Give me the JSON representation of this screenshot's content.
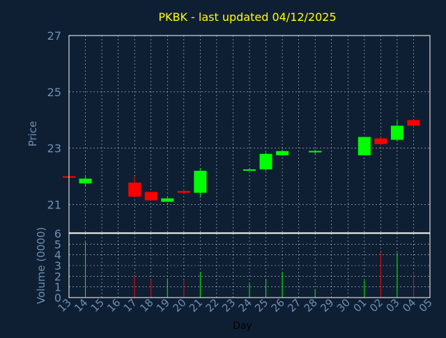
{
  "title": "PKBK - last updated 04/12/2025",
  "colors": {
    "background": "#0f1f33",
    "axis_text": "#6f8fb4",
    "title": "#ffff00",
    "grid": "#ffffff",
    "up": "#00ff00",
    "down": "#ff0000"
  },
  "chart_data": [
    {
      "type": "candlestick",
      "ylabel": "Price",
      "ylim": [
        20,
        27
      ],
      "yticks": [
        21,
        23,
        25,
        27
      ],
      "grid": true,
      "candles": [
        {
          "day": "13",
          "open": 21.98,
          "high": 21.98,
          "low": 21.98,
          "close": 21.98,
          "dir": "down"
        },
        {
          "day": "14",
          "open": 21.75,
          "high": 22.0,
          "low": 21.65,
          "close": 21.92,
          "dir": "up"
        },
        {
          "day": "17",
          "open": 21.78,
          "high": 22.0,
          "low": 21.28,
          "close": 21.28,
          "dir": "down"
        },
        {
          "day": "18",
          "open": 21.45,
          "high": 21.45,
          "low": 21.15,
          "close": 21.15,
          "dir": "down"
        },
        {
          "day": "19",
          "open": 21.1,
          "high": 21.28,
          "low": 21.1,
          "close": 21.22,
          "dir": "up"
        },
        {
          "day": "20",
          "open": 21.48,
          "high": 21.55,
          "low": 21.4,
          "close": 21.42,
          "dir": "down"
        },
        {
          "day": "21",
          "open": 21.42,
          "high": 22.3,
          "low": 21.25,
          "close": 22.2,
          "dir": "up"
        },
        {
          "day": "24",
          "open": 22.2,
          "high": 22.3,
          "low": 22.2,
          "close": 22.25,
          "dir": "up"
        },
        {
          "day": "25",
          "open": 22.25,
          "high": 22.85,
          "low": 22.2,
          "close": 22.8,
          "dir": "up"
        },
        {
          "day": "26",
          "open": 22.75,
          "high": 22.95,
          "low": 22.75,
          "close": 22.9,
          "dir": "up"
        },
        {
          "day": "28",
          "open": 22.85,
          "high": 22.95,
          "low": 22.8,
          "close": 22.88,
          "dir": "up"
        },
        {
          "day": "01",
          "open": 22.75,
          "high": 23.4,
          "low": 22.75,
          "close": 23.4,
          "dir": "up"
        },
        {
          "day": "02",
          "open": 23.35,
          "high": 23.4,
          "low": 23.1,
          "close": 23.15,
          "dir": "down"
        },
        {
          "day": "03",
          "open": 23.3,
          "high": 23.98,
          "low": 23.25,
          "close": 23.8,
          "dir": "up"
        },
        {
          "day": "04",
          "open": 24.0,
          "high": 24.0,
          "low": 23.75,
          "close": 23.8,
          "dir": "down"
        }
      ]
    },
    {
      "type": "bar",
      "ylabel": "Volume (0000)",
      "xlabel": "Day",
      "ylim": [
        0,
        6
      ],
      "yticks": [
        0,
        1,
        2,
        3,
        4,
        5,
        6
      ],
      "grid": true,
      "categories": [
        "13",
        "14",
        "15",
        "16",
        "17",
        "18",
        "19",
        "20",
        "21",
        "22",
        "23",
        "24",
        "25",
        "26",
        "27",
        "28",
        "29",
        "30",
        "01",
        "02",
        "03",
        "04",
        "05"
      ],
      "volumes": [
        {
          "day": "14",
          "value": 5.2,
          "dir": "up"
        },
        {
          "day": "17",
          "value": 2.0,
          "dir": "down"
        },
        {
          "day": "18",
          "value": 1.7,
          "dir": "down"
        },
        {
          "day": "19",
          "value": 1.8,
          "dir": "up"
        },
        {
          "day": "20",
          "value": 1.6,
          "dir": "down"
        },
        {
          "day": "21",
          "value": 2.4,
          "dir": "up"
        },
        {
          "day": "24",
          "value": 1.3,
          "dir": "up"
        },
        {
          "day": "25",
          "value": 1.7,
          "dir": "up"
        },
        {
          "day": "26",
          "value": 2.4,
          "dir": "up"
        },
        {
          "day": "28",
          "value": 0.8,
          "dir": "up"
        },
        {
          "day": "01",
          "value": 1.6,
          "dir": "up"
        },
        {
          "day": "02",
          "value": 4.2,
          "dir": "down"
        },
        {
          "day": "03",
          "value": 4.2,
          "dir": "up"
        },
        {
          "day": "04",
          "value": 2.4,
          "dir": "down"
        }
      ]
    }
  ]
}
